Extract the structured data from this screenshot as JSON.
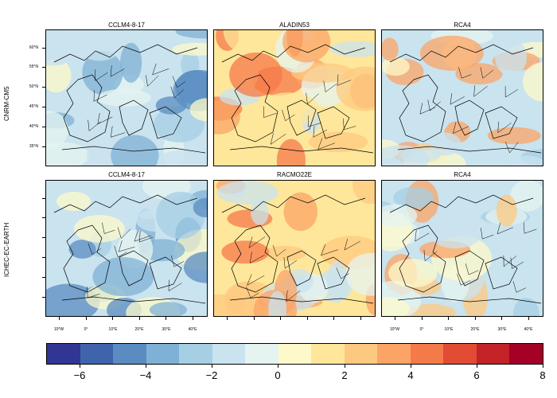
{
  "rows": [
    "CNRM-CM5",
    "ICHEC-EC-EARTH"
  ],
  "panels": [
    {
      "title": "CCLM4-8-17",
      "tone": "cool"
    },
    {
      "title": "ALADIN53",
      "tone": "warm"
    },
    {
      "title": "RCA4",
      "tone": "mixed"
    },
    {
      "title": "CCLM4-8-17",
      "tone": "cool"
    },
    {
      "title": "RACMO22E",
      "tone": "warm"
    },
    {
      "title": "RCA4",
      "tone": "mixed"
    }
  ],
  "lat_labels": [
    "60°N",
    "55°N",
    "50°N",
    "45°N",
    "40°N",
    "35°N"
  ],
  "lon_labels": [
    "10°W",
    "0°",
    "10°E",
    "20°E",
    "30°E",
    "40°E"
  ],
  "colorbar": {
    "tick_labels": [
      "−6",
      "−4",
      "−2",
      "0",
      "2",
      "4",
      "6",
      "8"
    ],
    "colors": [
      "#313695",
      "#4064ac",
      "#5a8cc2",
      "#7fb1d6",
      "#a6cfe4",
      "#c9e3ef",
      "#e6f4f1",
      "#fdf9c9",
      "#fee79b",
      "#fdc980",
      "#fba465",
      "#f57a49",
      "#e24b34",
      "#c42327",
      "#a50026"
    ]
  }
}
